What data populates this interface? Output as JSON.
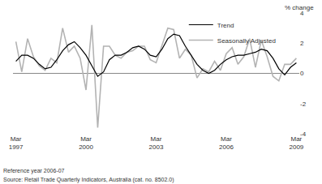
{
  "chart_data": {
    "type": "line",
    "categories": [
      "Mar 1997",
      null,
      null,
      null,
      null,
      null,
      null,
      null,
      null,
      null,
      null,
      null,
      "Mar 2000",
      null,
      null,
      null,
      null,
      null,
      null,
      null,
      null,
      null,
      null,
      null,
      "Mar 2003",
      null,
      null,
      null,
      null,
      null,
      null,
      null,
      null,
      null,
      null,
      null,
      "Mar 2006",
      null,
      null,
      null,
      null,
      null,
      null,
      null,
      null,
      null,
      null,
      null,
      "Mar 2009"
    ],
    "series": [
      {
        "name": "Trend",
        "color": "#000000",
        "line_style": "solid",
        "values": [
          0.8,
          1.2,
          1.2,
          1.0,
          0.6,
          0.3,
          0.4,
          0.9,
          1.5,
          1.9,
          2.1,
          1.7,
          1.2,
          0.5,
          -0.2,
          0.1,
          0.9,
          1.2,
          1.2,
          1.4,
          1.7,
          1.8,
          1.6,
          1.2,
          1.1,
          1.6,
          2.3,
          2.6,
          2.5,
          1.8,
          1.2,
          0.6,
          0.2,
          0.0,
          0.2,
          0.6,
          0.9,
          1.1,
          1.2,
          1.2,
          1.3,
          1.4,
          1.6,
          1.5,
          1.0,
          0.3,
          -0.1,
          0.4,
          0.7
        ]
      },
      {
        "name": "Seasonally Adjusted",
        "color": "#b3b3b3",
        "line_style": "solid",
        "values": [
          2.1,
          0.1,
          2.3,
          1.1,
          0.5,
          0.2,
          1.0,
          0.7,
          3.0,
          1.4,
          1.8,
          1.0,
          -1.1,
          3.2,
          -3.6,
          1.8,
          1.8,
          1.2,
          1.0,
          1.4,
          1.5,
          1.8,
          1.8,
          0.9,
          0.7,
          1.8,
          3.0,
          2.9,
          1.0,
          1.6,
          1.2,
          -0.3,
          0.3,
          0.1,
          0.8,
          0.2,
          1.3,
          1.7,
          0.6,
          1.1,
          2.3,
          0.4,
          2.2,
          1.1,
          -0.2,
          -0.5,
          0.6,
          0.6,
          1.0
        ]
      }
    ],
    "ylim": [
      -4,
      4
    ],
    "yticks": [
      -4,
      -2,
      0,
      2,
      4
    ],
    "y_label": "% change",
    "annotations": [
      "Reference year 2006-07",
      "Source: Retail Trade Quarterly Indicators, Australia (cat. no. 8502.0)"
    ],
    "legend": "top",
    "grid": false
  }
}
